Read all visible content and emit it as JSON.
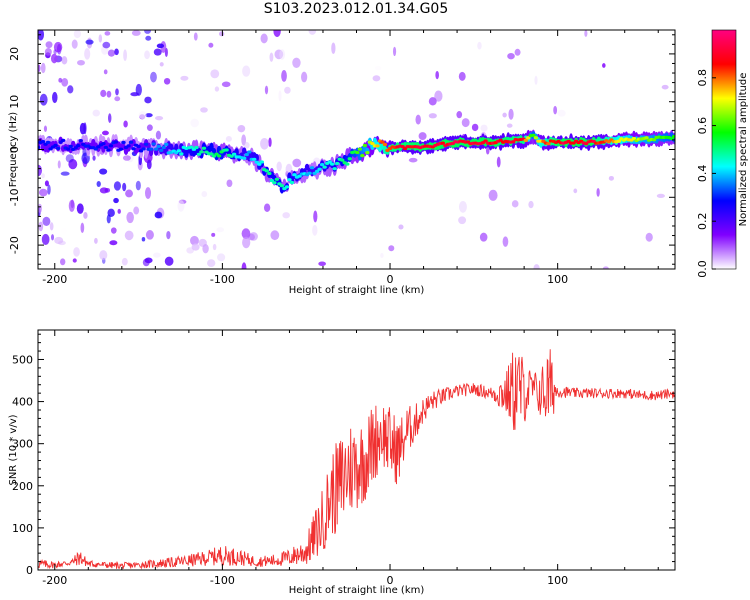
{
  "title": "S103.2023.012.01.34.G05",
  "chart_data": [
    {
      "type": "heatmap",
      "title": "S103.2023.012.01.34.G05",
      "xlabel": "Height of straight line (km)",
      "ylabel": "Frequency (Hz)",
      "xlim": [
        -210,
        170
      ],
      "ylim": [
        -25,
        25
      ],
      "x_ticks": [
        -200,
        -100,
        0,
        100
      ],
      "y_ticks": [
        -20,
        -10,
        0,
        10,
        20
      ],
      "colorbar": {
        "label": "Normalized spectral amplitude",
        "range": [
          0,
          1
        ],
        "ticks": [
          0.0,
          0.2,
          0.4,
          0.6,
          0.8
        ],
        "colormap": [
          "#ffffff",
          "#8000ff",
          "#0000ff",
          "#00ffff",
          "#00ff00",
          "#ffff00",
          "#ff0000",
          "#ff0080"
        ]
      },
      "ridge": {
        "x": [
          -210,
          -180,
          -150,
          -125,
          -100,
          -85,
          -75,
          -65,
          -55,
          -45,
          -40,
          -30,
          -20,
          -10,
          0,
          20,
          40,
          60,
          80,
          85,
          90,
          100,
          120,
          140,
          170
        ],
        "frequency_hz": [
          1.0,
          1.0,
          0.5,
          0.0,
          -0.5,
          -1.0,
          -4.0,
          -8.0,
          -5.0,
          -4.0,
          -4.0,
          -3.0,
          -1.0,
          1.0,
          0.5,
          0.5,
          1.5,
          1.5,
          2.0,
          3.0,
          1.5,
          1.5,
          1.5,
          2.0,
          2.5
        ],
        "amplitude": [
          0.3,
          0.3,
          0.3,
          0.45,
          0.55,
          0.4,
          0.5,
          0.5,
          0.45,
          0.4,
          0.45,
          0.5,
          0.6,
          0.75,
          0.9,
          0.95,
          0.95,
          0.95,
          0.9,
          0.6,
          0.8,
          0.95,
          0.95,
          0.75,
          0.6
        ]
      }
    },
    {
      "type": "line",
      "xlabel": "Height of straight line (km)",
      "ylabel": "SNR (10 * v/v)",
      "xlim": [
        -210,
        170
      ],
      "ylim": [
        0,
        570
      ],
      "x_ticks": [
        -200,
        -100,
        0,
        100
      ],
      "y_ticks": [
        0,
        100,
        200,
        300,
        400,
        500
      ],
      "series": [
        {
          "color": "#f03030",
          "x": [
            -210,
            -200,
            -190,
            -185,
            -180,
            -170,
            -160,
            -150,
            -140,
            -130,
            -120,
            -110,
            -100,
            -90,
            -80,
            -70,
            -60,
            -50,
            -45,
            -40,
            -35,
            -30,
            -25,
            -20,
            -15,
            -10,
            -5,
            0,
            5,
            10,
            15,
            20,
            25,
            30,
            40,
            50,
            60,
            70,
            75,
            80,
            85,
            90,
            95,
            100,
            110,
            120,
            130,
            140,
            150,
            160,
            170
          ],
          "y": [
            15,
            12,
            18,
            30,
            15,
            12,
            10,
            12,
            15,
            18,
            22,
            28,
            35,
            30,
            20,
            22,
            30,
            45,
            80,
            120,
            180,
            200,
            240,
            250,
            260,
            300,
            330,
            300,
            280,
            330,
            350,
            380,
            400,
            410,
            425,
            430,
            420,
            420,
            430,
            425,
            430,
            420,
            430,
            425,
            420,
            420,
            420,
            420,
            415,
            415,
            420
          ],
          "spread": [
            12,
            8,
            8,
            20,
            8,
            8,
            8,
            8,
            10,
            12,
            15,
            18,
            25,
            20,
            12,
            15,
            20,
            35,
            60,
            80,
            100,
            120,
            120,
            110,
            100,
            100,
            80,
            90,
            80,
            60,
            45,
            30,
            25,
            20,
            15,
            15,
            15,
            60,
            120,
            80,
            40,
            60,
            110,
            15,
            12,
            12,
            12,
            12,
            12,
            12,
            12
          ]
        }
      ]
    }
  ]
}
